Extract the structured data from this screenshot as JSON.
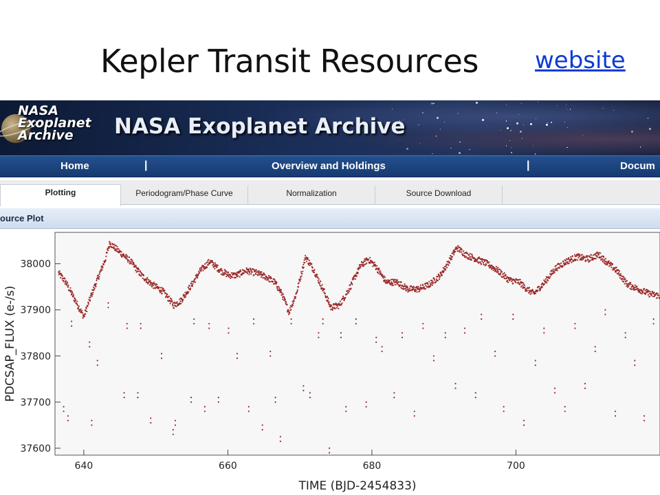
{
  "slide": {
    "title": "Kepler Transit Resources",
    "link_label": "website",
    "link_color": "#0b3bd6"
  },
  "banner": {
    "logo_text": "NASA\nExoplanet\nArchive",
    "title": "NASA Exoplanet Archive"
  },
  "nav": {
    "items": [
      "Home",
      "Overview and Holdings",
      "Docum"
    ],
    "separator": "|"
  },
  "tabs": [
    {
      "label": "Plotting",
      "active": true
    },
    {
      "label": "Periodogram/Phase Curve",
      "active": false
    },
    {
      "label": "Normalization",
      "active": false
    },
    {
      "label": "Source Download",
      "active": false
    }
  ],
  "panel": {
    "title": "ource Plot"
  },
  "chart_data": {
    "type": "scatter",
    "xlabel": "TIME (BJD-2454833)",
    "ylabel": "PDCSAP_FLUX (e-/s)",
    "xlim": [
      636,
      720
    ],
    "ylim": [
      37585,
      38068
    ],
    "x_ticks": [
      640,
      660,
      680,
      700
    ],
    "y_ticks": [
      37600,
      37700,
      37800,
      37900,
      38000
    ],
    "point_color": "#9b2a2a",
    "series": [
      {
        "x": [
          636.5,
          637.5,
          638.5,
          639.5,
          640.0,
          641.0,
          642.0,
          643.0,
          643.6,
          645.0,
          646.5,
          648.0,
          649.5,
          651.0,
          652.5,
          653.5,
          655.0,
          656.2,
          657.5,
          659.0,
          660.2,
          661.2,
          662.5,
          664.0,
          665.5,
          666.5,
          667.5,
          668.5,
          669.5,
          670.8,
          672.0,
          673.5,
          674.3,
          675.5,
          677.0,
          678.4,
          679.5,
          680.5,
          682.0,
          683.5,
          685.0,
          686.5,
          688.0,
          689.5,
          690.5,
          691.8,
          693.0,
          694.5,
          696.0,
          697.5,
          699.0,
          700.5,
          701.5,
          702.5,
          704.0,
          705.5,
          707.0,
          708.5,
          710.0,
          711.5,
          712.5,
          714.0,
          715.5,
          717.0,
          718.5,
          720.0
        ],
        "y": [
          37980,
          37960,
          37930,
          37900,
          37885,
          37930,
          37970,
          38010,
          38045,
          38025,
          38005,
          37975,
          37955,
          37940,
          37910,
          37920,
          37955,
          37985,
          38005,
          37985,
          37975,
          37975,
          37985,
          37980,
          37970,
          37960,
          37935,
          37895,
          37935,
          38015,
          37985,
          37935,
          37905,
          37910,
          37950,
          37995,
          38010,
          37995,
          37960,
          37960,
          37945,
          37945,
          37955,
          37975,
          38000,
          38035,
          38020,
          38010,
          38000,
          37985,
          37965,
          37960,
          37945,
          37935,
          37960,
          37990,
          38005,
          38015,
          38010,
          38020,
          38005,
          37985,
          37955,
          37945,
          37935,
          37930
        ]
      },
      {
        "x": [
          637.2,
          637.8,
          638.3,
          640.8,
          641.1,
          641.9,
          643.4,
          645.6,
          646.0,
          647.5,
          647.9,
          649.3,
          650.8,
          652.4,
          652.7,
          654.9,
          655.3,
          656.8,
          657.4,
          658.7,
          660.1,
          661.3,
          662.9,
          663.6,
          664.8,
          665.9,
          666.6,
          667.3,
          668.8,
          670.5,
          671.4,
          672.6,
          673.2,
          674.1,
          675.7,
          676.4,
          677.8,
          679.2,
          680.6,
          681.4,
          683.1,
          684.2,
          685.9,
          687.1,
          688.6,
          690.2,
          691.6,
          692.9,
          694.4,
          695.2,
          697.1,
          698.3,
          699.6,
          701.1,
          702.7,
          703.9,
          705.4,
          706.8,
          708.2,
          709.6,
          711.0,
          712.4,
          713.8,
          715.2,
          716.5,
          717.8,
          719.1
        ],
        "y": [
          37690,
          37670,
          37875,
          37830,
          37660,
          37790,
          37915,
          37720,
          37870,
          37720,
          37870,
          37665,
          37805,
          37640,
          37660,
          37710,
          37880,
          37690,
          37870,
          37710,
          37860,
          37805,
          37690,
          37880,
          37650,
          37810,
          37710,
          37625,
          37880,
          37735,
          37720,
          37850,
          37880,
          37600,
          37850,
          37690,
          37880,
          37700,
          37840,
          37820,
          37720,
          37850,
          37680,
          37870,
          37800,
          37850,
          37740,
          37860,
          37720,
          37890,
          37810,
          37690,
          37890,
          37660,
          37790,
          37860,
          37730,
          37690,
          37870,
          37740,
          37820,
          37900,
          37680,
          37850,
          37790,
          37670,
          37880
        ]
      }
    ]
  }
}
